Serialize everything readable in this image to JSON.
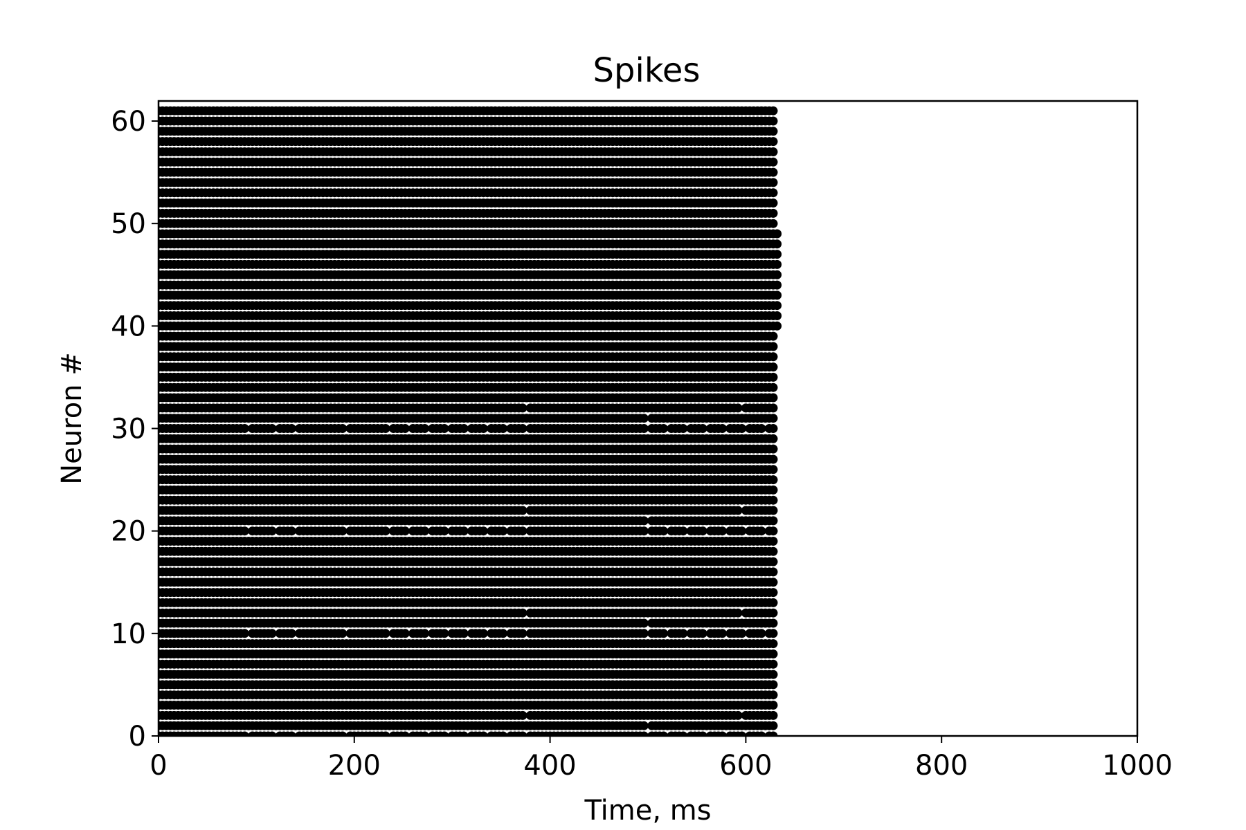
{
  "chart_data": {
    "type": "scatter",
    "title": "Spikes",
    "xlabel": "Time, ms",
    "ylabel": "Neuron #",
    "xlim": [
      0,
      1000
    ],
    "ylim": [
      0,
      62
    ],
    "xticks": [
      0,
      200,
      400,
      600,
      800,
      1000
    ],
    "yticks": [
      0,
      10,
      20,
      30,
      40,
      50,
      60
    ],
    "grid": false,
    "legend": "none",
    "marker_color": "#000000",
    "neurons": {
      "first": 0,
      "last": 61
    },
    "spike_window_ms": [
      0,
      630
    ],
    "spike_interval_ms": 4,
    "late_spike_neurons": {
      "first": 40,
      "last": 49,
      "last_spike_ms": 633
    },
    "sparse_rows": [
      0,
      10,
      20,
      30
    ],
    "gap_times_ms": [
      92,
      120,
      140,
      192,
      236,
      256,
      276,
      296,
      316,
      336,
      356,
      376,
      406,
      446,
      466,
      486,
      500,
      520,
      540,
      560,
      580,
      600,
      620
    ],
    "isolated_gaps": [
      {
        "neuron": 2,
        "time_ms": 376
      },
      {
        "neuron": 12,
        "time_ms": 376
      },
      {
        "neuron": 22,
        "time_ms": 376
      },
      {
        "neuron": 32,
        "time_ms": 376
      },
      {
        "neuron": 1,
        "time_ms": 500
      },
      {
        "neuron": 11,
        "time_ms": 500
      },
      {
        "neuron": 21,
        "time_ms": 500
      },
      {
        "neuron": 31,
        "time_ms": 500
      },
      {
        "neuron": 2,
        "time_ms": 596
      },
      {
        "neuron": 12,
        "time_ms": 596
      },
      {
        "neuron": 22,
        "time_ms": 596
      },
      {
        "neuron": 32,
        "time_ms": 596
      }
    ]
  }
}
